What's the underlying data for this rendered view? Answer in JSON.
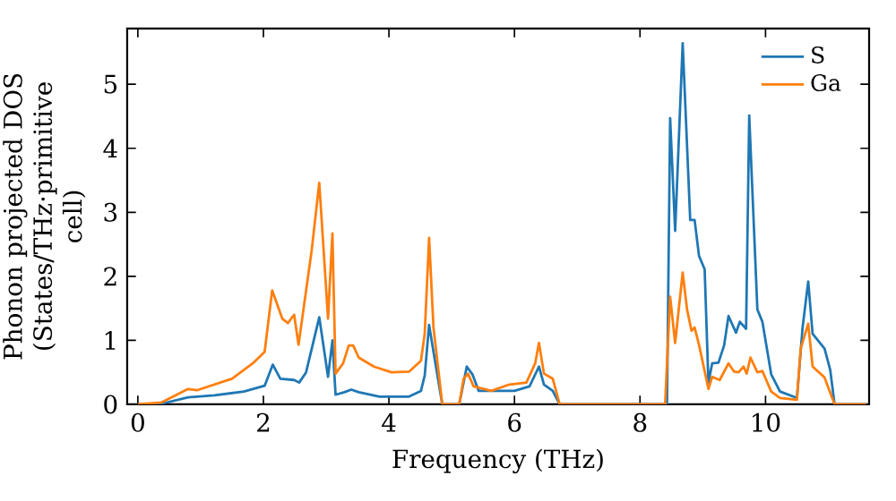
{
  "chart_data": {
    "type": "line",
    "xlabel": "Frequency (THz)",
    "ylabel": "Phonon projected DOS (States/THz·primitive cell)",
    "xlim": [
      -0.17,
      11.65
    ],
    "ylim": [
      0,
      5.87
    ],
    "xticks": [
      0,
      2,
      4,
      6,
      8,
      10
    ],
    "yticks": [
      0,
      1,
      2,
      3,
      4,
      5
    ],
    "legend": "top right",
    "grid": false,
    "marker": "none",
    "line_style": "solid",
    "series": [
      {
        "name": "S",
        "color": "#1f77b4",
        "x": [
          0,
          0.38,
          0.8,
          1.22,
          1.69,
          2.02,
          2.15,
          2.27,
          2.49,
          2.57,
          2.68,
          2.89,
          3.03,
          3.1,
          3.15,
          3.29,
          3.4,
          3.52,
          3.85,
          4.32,
          4.51,
          4.57,
          4.64,
          4.71,
          4.85,
          5.12,
          5.24,
          5.33,
          5.43,
          5.82,
          6.0,
          6.24,
          6.39,
          6.47,
          6.61,
          6.72,
          8.43,
          8.48,
          8.56,
          8.68,
          8.8,
          8.87,
          8.94,
          9.03,
          9.09,
          9.15,
          9.25,
          9.34,
          9.41,
          9.53,
          9.59,
          9.69,
          9.74,
          9.87,
          9.95,
          10.09,
          10.23,
          10.5,
          10.59,
          10.68,
          10.75,
          10.94,
          11.03,
          11.1,
          11.6
        ],
        "values": [
          0,
          0.01,
          0.11,
          0.14,
          0.2,
          0.29,
          0.62,
          0.4,
          0.38,
          0.34,
          0.5,
          1.36,
          0.43,
          1.0,
          0.15,
          0.19,
          0.23,
          0.19,
          0.12,
          0.12,
          0.21,
          0.45,
          1.24,
          0.82,
          0,
          0,
          0.59,
          0.47,
          0.21,
          0.21,
          0.21,
          0.28,
          0.59,
          0.31,
          0.21,
          0,
          0,
          4.47,
          2.71,
          5.64,
          2.88,
          2.88,
          2.32,
          2.11,
          0.34,
          0.64,
          0.65,
          0.92,
          1.38,
          1.12,
          1.29,
          1.18,
          4.51,
          1.48,
          1.29,
          0.47,
          0.2,
          0.1,
          1.2,
          1.92,
          1.1,
          0.87,
          0.54,
          0,
          0
        ]
      },
      {
        "name": "Ga",
        "color": "#ff7f0e",
        "x": [
          0,
          0.38,
          0.8,
          0.94,
          1.5,
          1.83,
          2.02,
          2.14,
          2.3,
          2.39,
          2.49,
          2.56,
          2.77,
          2.89,
          3.03,
          3.1,
          3.15,
          3.27,
          3.36,
          3.43,
          3.52,
          3.76,
          4.04,
          4.32,
          4.51,
          4.57,
          4.64,
          4.71,
          4.85,
          5.12,
          5.19,
          5.26,
          5.35,
          5.63,
          5.92,
          6.19,
          6.33,
          6.39,
          6.47,
          6.61,
          6.72,
          8.4,
          8.48,
          8.56,
          8.68,
          8.75,
          8.82,
          8.87,
          8.94,
          9.09,
          9.15,
          9.27,
          9.41,
          9.5,
          9.57,
          9.65,
          9.7,
          9.76,
          9.87,
          9.95,
          10.09,
          10.23,
          10.5,
          10.56,
          10.68,
          10.75,
          10.94,
          11.1,
          11.6
        ],
        "values": [
          0,
          0.03,
          0.24,
          0.22,
          0.4,
          0.64,
          0.82,
          1.78,
          1.34,
          1.27,
          1.4,
          0.93,
          2.41,
          3.46,
          1.34,
          2.67,
          0.48,
          0.64,
          0.92,
          0.92,
          0.73,
          0.59,
          0.5,
          0.51,
          0.68,
          1.1,
          2.6,
          1.2,
          0,
          0,
          0.4,
          0.48,
          0.28,
          0.21,
          0.31,
          0.34,
          0.64,
          0.96,
          0.48,
          0.4,
          0,
          0,
          1.68,
          0.96,
          2.06,
          1.48,
          1.15,
          1.2,
          0.93,
          0.24,
          0.43,
          0.38,
          0.64,
          0.51,
          0.5,
          0.59,
          0.48,
          0.73,
          0.5,
          0.52,
          0.2,
          0.1,
          0.07,
          0.87,
          1.26,
          0.59,
          0.42,
          0,
          0
        ]
      }
    ]
  }
}
